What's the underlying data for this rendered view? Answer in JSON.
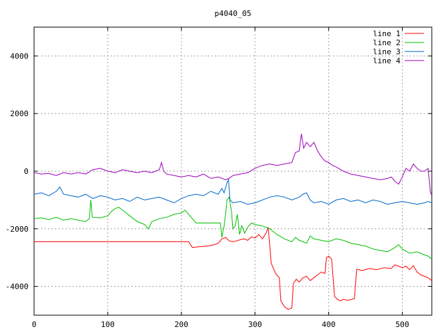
{
  "chart_data": {
    "type": "line",
    "title": "p4040_05",
    "xlabel": "",
    "ylabel": "",
    "xlim": [
      0,
      540
    ],
    "ylim": [
      -5000,
      5000
    ],
    "xticks": [
      0,
      100,
      200,
      300,
      400,
      500
    ],
    "yticks": [
      -4000,
      -2000,
      0,
      2000,
      4000
    ],
    "grid": true,
    "legend_position": "top-right",
    "series": [
      {
        "name": "line 1",
        "color": "#ff0000",
        "points": [
          [
            0,
            -2450
          ],
          [
            50,
            -2450
          ],
          [
            100,
            -2450
          ],
          [
            150,
            -2450
          ],
          [
            200,
            -2450
          ],
          [
            210,
            -2450
          ],
          [
            215,
            -2650
          ],
          [
            225,
            -2620
          ],
          [
            235,
            -2600
          ],
          [
            245,
            -2550
          ],
          [
            250,
            -2500
          ],
          [
            255,
            -2350
          ],
          [
            260,
            -2300
          ],
          [
            265,
            -2420
          ],
          [
            270,
            -2450
          ],
          [
            275,
            -2420
          ],
          [
            280,
            -2380
          ],
          [
            285,
            -2350
          ],
          [
            290,
            -2400
          ],
          [
            295,
            -2280
          ],
          [
            300,
            -2320
          ],
          [
            305,
            -2200
          ],
          [
            310,
            -2350
          ],
          [
            315,
            -2150
          ],
          [
            318,
            -1950
          ],
          [
            322,
            -3200
          ],
          [
            328,
            -3550
          ],
          [
            333,
            -3700
          ],
          [
            335,
            -4500
          ],
          [
            340,
            -4700
          ],
          [
            345,
            -4800
          ],
          [
            350,
            -4750
          ],
          [
            352,
            -3900
          ],
          [
            356,
            -3750
          ],
          [
            360,
            -3850
          ],
          [
            365,
            -3700
          ],
          [
            370,
            -3650
          ],
          [
            375,
            -3800
          ],
          [
            380,
            -3700
          ],
          [
            385,
            -3600
          ],
          [
            390,
            -3500
          ],
          [
            395,
            -3550
          ],
          [
            397,
            -3000
          ],
          [
            400,
            -2950
          ],
          [
            404,
            -3050
          ],
          [
            408,
            -4350
          ],
          [
            412,
            -4450
          ],
          [
            416,
            -4500
          ],
          [
            420,
            -4450
          ],
          [
            425,
            -4480
          ],
          [
            430,
            -4460
          ],
          [
            435,
            -4420
          ],
          [
            438,
            -3400
          ],
          [
            445,
            -3450
          ],
          [
            455,
            -3380
          ],
          [
            465,
            -3420
          ],
          [
            475,
            -3350
          ],
          [
            485,
            -3380
          ],
          [
            490,
            -3250
          ],
          [
            495,
            -3300
          ],
          [
            500,
            -3350
          ],
          [
            505,
            -3300
          ],
          [
            510,
            -3420
          ],
          [
            515,
            -3280
          ],
          [
            520,
            -3500
          ],
          [
            525,
            -3600
          ],
          [
            530,
            -3650
          ],
          [
            535,
            -3700
          ],
          [
            540,
            -3800
          ]
        ]
      },
      {
        "name": "line 2",
        "color": "#00c000",
        "points": [
          [
            0,
            -1650
          ],
          [
            10,
            -1620
          ],
          [
            20,
            -1680
          ],
          [
            30,
            -1600
          ],
          [
            40,
            -1700
          ],
          [
            50,
            -1650
          ],
          [
            60,
            -1700
          ],
          [
            70,
            -1750
          ],
          [
            75,
            -1650
          ],
          [
            77,
            -1000
          ],
          [
            79,
            -1600
          ],
          [
            90,
            -1620
          ],
          [
            100,
            -1550
          ],
          [
            105,
            -1400
          ],
          [
            110,
            -1300
          ],
          [
            115,
            -1250
          ],
          [
            120,
            -1350
          ],
          [
            125,
            -1450
          ],
          [
            130,
            -1550
          ],
          [
            140,
            -1750
          ],
          [
            150,
            -1850
          ],
          [
            155,
            -2000
          ],
          [
            160,
            -1750
          ],
          [
            170,
            -1650
          ],
          [
            180,
            -1600
          ],
          [
            190,
            -1500
          ],
          [
            200,
            -1450
          ],
          [
            205,
            -1350
          ],
          [
            210,
            -1500
          ],
          [
            215,
            -1650
          ],
          [
            220,
            -1800
          ],
          [
            230,
            -1800
          ],
          [
            240,
            -1800
          ],
          [
            250,
            -1800
          ],
          [
            253,
            -1800
          ],
          [
            255,
            -2300
          ],
          [
            258,
            -1900
          ],
          [
            260,
            -1500
          ],
          [
            262,
            -1000
          ],
          [
            265,
            -900
          ],
          [
            268,
            -1400
          ],
          [
            270,
            -2000
          ],
          [
            273,
            -1900
          ],
          [
            276,
            -1500
          ],
          [
            279,
            -2200
          ],
          [
            282,
            -1900
          ],
          [
            286,
            -2150
          ],
          [
            290,
            -1950
          ],
          [
            295,
            -1800
          ],
          [
            300,
            -1850
          ],
          [
            310,
            -1900
          ],
          [
            320,
            -2000
          ],
          [
            330,
            -2200
          ],
          [
            340,
            -2350
          ],
          [
            350,
            -2450
          ],
          [
            355,
            -2300
          ],
          [
            360,
            -2400
          ],
          [
            370,
            -2500
          ],
          [
            375,
            -2250
          ],
          [
            380,
            -2350
          ],
          [
            390,
            -2400
          ],
          [
            400,
            -2450
          ],
          [
            410,
            -2350
          ],
          [
            420,
            -2400
          ],
          [
            430,
            -2500
          ],
          [
            440,
            -2550
          ],
          [
            450,
            -2600
          ],
          [
            460,
            -2700
          ],
          [
            470,
            -2750
          ],
          [
            480,
            -2800
          ],
          [
            490,
            -2650
          ],
          [
            495,
            -2550
          ],
          [
            500,
            -2700
          ],
          [
            510,
            -2850
          ],
          [
            520,
            -2800
          ],
          [
            530,
            -2900
          ],
          [
            535,
            -2950
          ],
          [
            540,
            -3050
          ]
        ]
      },
      {
        "name": "line 3",
        "color": "#0066cc",
        "points": [
          [
            0,
            -800
          ],
          [
            10,
            -750
          ],
          [
            20,
            -850
          ],
          [
            30,
            -700
          ],
          [
            35,
            -550
          ],
          [
            40,
            -800
          ],
          [
            50,
            -850
          ],
          [
            60,
            -900
          ],
          [
            70,
            -800
          ],
          [
            80,
            -950
          ],
          [
            90,
            -850
          ],
          [
            100,
            -900
          ],
          [
            110,
            -1000
          ],
          [
            120,
            -950
          ],
          [
            130,
            -1050
          ],
          [
            140,
            -900
          ],
          [
            150,
            -1000
          ],
          [
            160,
            -950
          ],
          [
            170,
            -900
          ],
          [
            180,
            -1000
          ],
          [
            190,
            -1100
          ],
          [
            200,
            -950
          ],
          [
            210,
            -850
          ],
          [
            220,
            -800
          ],
          [
            230,
            -850
          ],
          [
            240,
            -700
          ],
          [
            250,
            -800
          ],
          [
            255,
            -600
          ],
          [
            258,
            -750
          ],
          [
            262,
            -400
          ],
          [
            264,
            -300
          ],
          [
            266,
            -1000
          ],
          [
            270,
            -1100
          ],
          [
            280,
            -1050
          ],
          [
            290,
            -1150
          ],
          [
            300,
            -1100
          ],
          [
            310,
            -1000
          ],
          [
            320,
            -900
          ],
          [
            330,
            -850
          ],
          [
            340,
            -900
          ],
          [
            350,
            -1000
          ],
          [
            360,
            -900
          ],
          [
            365,
            -800
          ],
          [
            370,
            -750
          ],
          [
            375,
            -1000
          ],
          [
            380,
            -1100
          ],
          [
            390,
            -1050
          ],
          [
            400,
            -1150
          ],
          [
            410,
            -1000
          ],
          [
            420,
            -950
          ],
          [
            430,
            -1050
          ],
          [
            440,
            -1000
          ],
          [
            450,
            -1100
          ],
          [
            460,
            -1000
          ],
          [
            470,
            -1050
          ],
          [
            480,
            -1150
          ],
          [
            490,
            -1100
          ],
          [
            500,
            -1050
          ],
          [
            510,
            -1100
          ],
          [
            520,
            -1150
          ],
          [
            530,
            -1100
          ],
          [
            535,
            -1050
          ],
          [
            540,
            -1100
          ]
        ]
      },
      {
        "name": "line 4",
        "color": "#a000c0",
        "points": [
          [
            0,
            -50
          ],
          [
            10,
            -100
          ],
          [
            20,
            -80
          ],
          [
            30,
            -150
          ],
          [
            40,
            -50
          ],
          [
            50,
            -100
          ],
          [
            60,
            -50
          ],
          [
            70,
            -100
          ],
          [
            80,
            50
          ],
          [
            90,
            100
          ],
          [
            100,
            0
          ],
          [
            110,
            -50
          ],
          [
            120,
            50
          ],
          [
            130,
            0
          ],
          [
            140,
            -50
          ],
          [
            150,
            0
          ],
          [
            160,
            -50
          ],
          [
            170,
            50
          ],
          [
            173,
            300
          ],
          [
            176,
            0
          ],
          [
            180,
            -100
          ],
          [
            190,
            -150
          ],
          [
            200,
            -200
          ],
          [
            210,
            -150
          ],
          [
            220,
            -200
          ],
          [
            230,
            -100
          ],
          [
            240,
            -250
          ],
          [
            250,
            -200
          ],
          [
            260,
            -300
          ],
          [
            265,
            -250
          ],
          [
            270,
            -150
          ],
          [
            280,
            -100
          ],
          [
            290,
            -50
          ],
          [
            300,
            100
          ],
          [
            310,
            200
          ],
          [
            320,
            250
          ],
          [
            330,
            200
          ],
          [
            340,
            250
          ],
          [
            350,
            300
          ],
          [
            355,
            650
          ],
          [
            360,
            700
          ],
          [
            363,
            1300
          ],
          [
            366,
            800
          ],
          [
            370,
            1000
          ],
          [
            375,
            850
          ],
          [
            380,
            1000
          ],
          [
            385,
            700
          ],
          [
            390,
            500
          ],
          [
            395,
            350
          ],
          [
            400,
            300
          ],
          [
            405,
            200
          ],
          [
            410,
            150
          ],
          [
            420,
            0
          ],
          [
            430,
            -100
          ],
          [
            440,
            -150
          ],
          [
            450,
            -200
          ],
          [
            460,
            -250
          ],
          [
            470,
            -300
          ],
          [
            480,
            -250
          ],
          [
            485,
            -200
          ],
          [
            490,
            -350
          ],
          [
            495,
            -450
          ],
          [
            500,
            -200
          ],
          [
            505,
            100
          ],
          [
            510,
            0
          ],
          [
            515,
            250
          ],
          [
            520,
            100
          ],
          [
            525,
            0
          ],
          [
            530,
            0
          ],
          [
            535,
            100
          ],
          [
            538,
            -700
          ],
          [
            540,
            -850
          ]
        ]
      }
    ]
  }
}
